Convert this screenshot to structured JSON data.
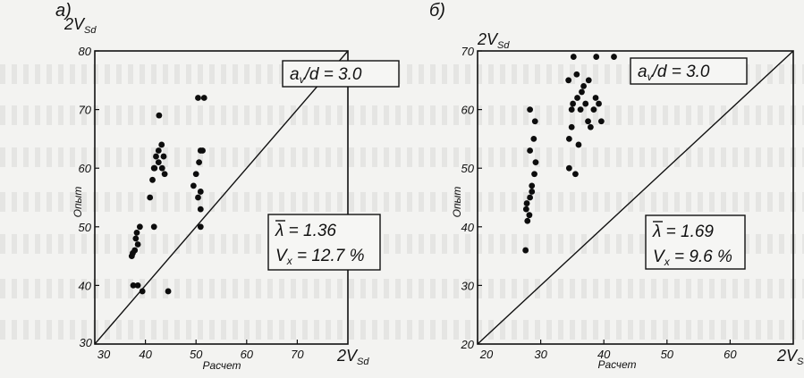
{
  "chart_data": [
    {
      "type": "scatter",
      "panel_label": "а)",
      "corner_label": "2V",
      "corner_sub": "Sd",
      "xlabel": "Расчет",
      "ylabel": "Опыт",
      "xlim": [
        30,
        80
      ],
      "ylim": [
        30,
        80
      ],
      "xticks": [
        "30",
        "40",
        "50",
        "60",
        "70"
      ],
      "yticks": [
        "30",
        "40",
        "50",
        "60",
        "70",
        "80"
      ],
      "legend_top": {
        "pre": "a",
        "sub": "v",
        "post": "/d = 3.0"
      },
      "legend_stats": {
        "l1": "λ = 1.36",
        "l2pre": "V",
        "l2sub": "x",
        "l2post": " = 12.7 %"
      },
      "diagonal": true,
      "points": [
        [
          37.6,
          40
        ],
        [
          38.5,
          40
        ],
        [
          37.3,
          45
        ],
        [
          37.9,
          46
        ],
        [
          38.5,
          47
        ],
        [
          38.1,
          48
        ],
        [
          38.3,
          49
        ],
        [
          38.9,
          50
        ],
        [
          37.5,
          45.5
        ],
        [
          39.4,
          39
        ],
        [
          40.9,
          55
        ],
        [
          41.4,
          58
        ],
        [
          41.7,
          60
        ],
        [
          42.1,
          62
        ],
        [
          42.6,
          63
        ],
        [
          43.2,
          64
        ],
        [
          41.7,
          50
        ],
        [
          41.8,
          60
        ],
        [
          42.6,
          61
        ],
        [
          43.3,
          60
        ],
        [
          43.8,
          59
        ],
        [
          42.7,
          69
        ],
        [
          43.6,
          62
        ],
        [
          44.5,
          39
        ],
        [
          49.5,
          57
        ],
        [
          50.0,
          59
        ],
        [
          50.6,
          61
        ],
        [
          50.9,
          63
        ],
        [
          50.4,
          55
        ],
        [
          50.9,
          53
        ],
        [
          50.9,
          50
        ],
        [
          50.4,
          72
        ],
        [
          51.6,
          72
        ],
        [
          50.9,
          56
        ],
        [
          51.3,
          63
        ]
      ]
    },
    {
      "type": "scatter",
      "panel_label": "б)",
      "corner_label": "2V",
      "corner_sub": "Sd",
      "xlabel": "Расчет",
      "ylabel": "Опыт",
      "xlim": [
        20,
        70
      ],
      "ylim": [
        20,
        70
      ],
      "xticks": [
        "20",
        "30",
        "40",
        "50",
        "60"
      ],
      "yticks": [
        "20",
        "30",
        "40",
        "50",
        "60",
        "70"
      ],
      "legend_top": {
        "pre": "a",
        "sub": "v",
        "post": "/d = 3.0"
      },
      "legend_stats": {
        "l1": "λ = 1.69",
        "l2pre": "V",
        "l2sub": "x",
        "l2post": " = 9.6 %"
      },
      "diagonal": true,
      "points": [
        [
          27.6,
          36
        ],
        [
          27.9,
          41
        ],
        [
          28.2,
          42
        ],
        [
          27.8,
          44
        ],
        [
          28.3,
          45
        ],
        [
          28.6,
          47
        ],
        [
          29.0,
          49
        ],
        [
          29.2,
          51
        ],
        [
          28.3,
          53
        ],
        [
          28.9,
          55
        ],
        [
          29.1,
          58
        ],
        [
          28.3,
          60
        ],
        [
          27.7,
          43
        ],
        [
          28.6,
          46
        ],
        [
          34.5,
          50
        ],
        [
          34.5,
          55
        ],
        [
          34.9,
          57
        ],
        [
          35.1,
          61
        ],
        [
          35.8,
          62
        ],
        [
          36.5,
          63
        ],
        [
          36.8,
          64
        ],
        [
          35.7,
          66
        ],
        [
          35.2,
          69
        ],
        [
          34.4,
          65
        ],
        [
          34.9,
          60
        ],
        [
          36.3,
          60
        ],
        [
          37.1,
          61
        ],
        [
          37.5,
          58
        ],
        [
          37.9,
          57
        ],
        [
          38.4,
          60
        ],
        [
          38.7,
          62
        ],
        [
          39.2,
          61
        ],
        [
          38.8,
          69
        ],
        [
          41.6,
          69
        ],
        [
          39.6,
          58
        ],
        [
          36.0,
          54
        ],
        [
          37.6,
          65
        ],
        [
          35.5,
          49
        ]
      ]
    }
  ]
}
